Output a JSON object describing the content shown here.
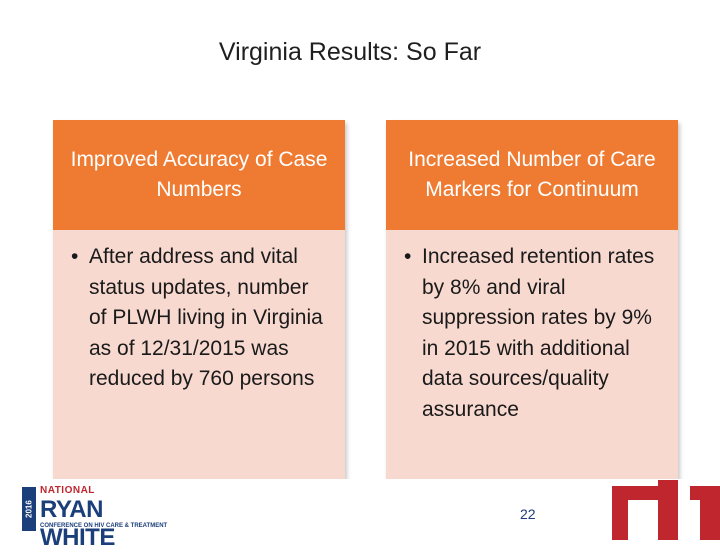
{
  "slide": {
    "title": "Virginia Results: So Far",
    "page_number": "22"
  },
  "cards": [
    {
      "heading": "Improved Accuracy of Case Numbers",
      "bullet": "After address and vital status updates, number of PLWH living in Virginia as of 12/31/2015 was reduced by 760 persons"
    },
    {
      "heading": "Increased Number of Care Markers for Continuum",
      "bullet": "Increased retention rates by 8% and viral suppression rates by 9%  in 2015 with additional data sources/quality assurance"
    }
  ],
  "logo": {
    "year": "2016",
    "top_line": "NATIONAL",
    "name": "RYAN WHITE",
    "tagline": "CONFERENCE ON HIV CARE & TREATMENT"
  },
  "colors": {
    "header_orange": "#ee7b31",
    "body_pink": "#f7d9d0",
    "brand_red": "#c0262d",
    "brand_blue": "#1b3f7a"
  }
}
